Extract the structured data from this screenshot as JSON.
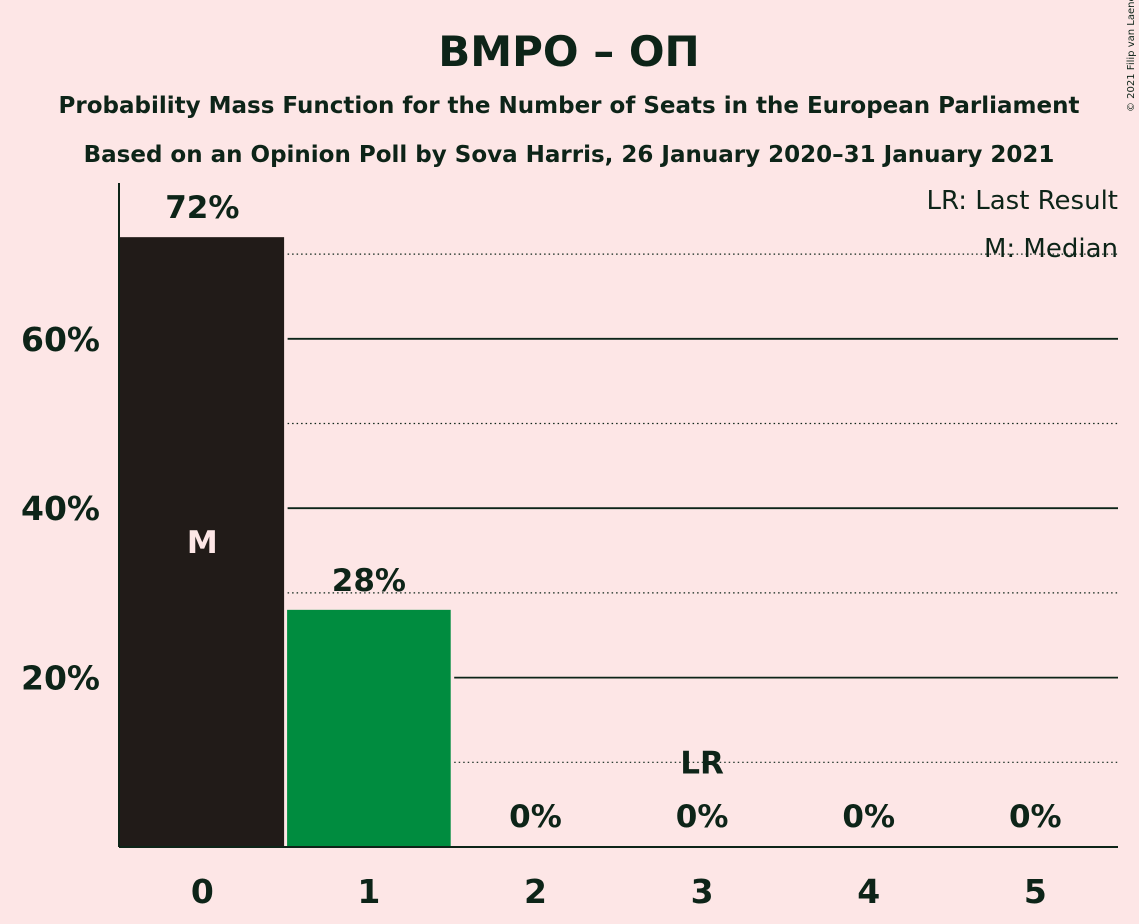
{
  "chart_data": {
    "type": "bar",
    "title": "ВМРО – ОП",
    "subtitle_lines": [
      "Probability Mass Function for the Number of Seats in the European Parliament",
      "Based on an Opinion Poll by Sova Harris, 26 January 2020–31 January 2021"
    ],
    "categories": [
      "0",
      "1",
      "2",
      "3",
      "4",
      "5"
    ],
    "values": [
      72,
      28,
      0,
      0,
      0,
      0
    ],
    "value_labels": [
      "72%",
      "28%",
      "0%",
      "0%",
      "0%",
      "0%"
    ],
    "ylim": [
      0,
      78
    ],
    "yticks": [
      20,
      40,
      60
    ],
    "ytick_labels": [
      "20%",
      "40%",
      "60%"
    ],
    "dotted_gridlines": [
      10,
      30,
      50,
      70
    ],
    "grid": true,
    "median_index": 0,
    "median_marker": "M",
    "last_result_index": 3,
    "last_result_marker": "LR",
    "legend": [
      "LR: Last Result",
      "M: Median"
    ],
    "legend_placement": "top-right",
    "copyright": "© 2021 Filip van Laenen",
    "colors": {
      "background": "#fde6e6",
      "median_bar": "#211b18",
      "bar": "#008c3f",
      "text": "#0d2418",
      "median_label": "#fde6e6"
    }
  }
}
